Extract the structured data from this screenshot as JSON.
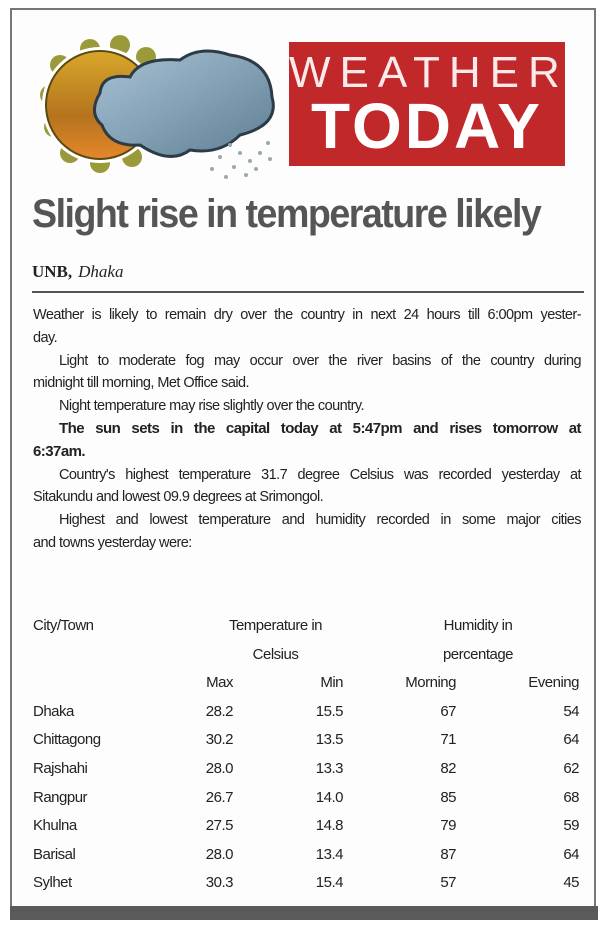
{
  "logo": {
    "line1": "WEATHER",
    "line2": "TODAY",
    "brand_color": "#c0282a",
    "icon": "sun-cloud-rain-icon"
  },
  "headline": "Slight rise in temperature likely",
  "byline": {
    "source": "UNB,",
    "location": "Dhaka"
  },
  "paragraphs": [
    {
      "lines": [
        "Weather is likely to remain dry over the country in next 24 hours till 6:00pm yester-",
        "day."
      ]
    },
    {
      "lines": [
        "Light to moderate fog may occur over the river basins of the country during",
        "midnight till morning, Met Office said."
      ]
    },
    {
      "lines": [
        "Night temperature may rise slightly over the country."
      ]
    },
    {
      "lines": [
        "The sun sets in the capital today at 5:47pm and rises tomorrow at",
        "6:37am."
      ],
      "bold": true
    },
    {
      "lines": [
        "Country's highest temperature 31.7 degree Celsius was recorded yesterday at",
        "Sitakundu and lowest 09.9 degrees at Srimongol."
      ]
    },
    {
      "lines": [
        "Highest and lowest temperature and humidity recorded in some major cities",
        "and towns yesterday were:"
      ]
    }
  ],
  "table": {
    "city_header": "City/Town",
    "temp_header": [
      "Temperature in",
      "Celsius"
    ],
    "humidity_header": [
      "Humidity in",
      "percentage"
    ],
    "subheaders": [
      "Max",
      "Min",
      "Morning",
      "Evening"
    ],
    "rows": [
      [
        "Dhaka",
        "28.2",
        "15.5",
        "67",
        "54"
      ],
      [
        "Chittagong",
        "30.2",
        "13.5",
        "71",
        "64"
      ],
      [
        "Rajshahi",
        "28.0",
        "13.3",
        "82",
        "62"
      ],
      [
        "Rangpur",
        "26.7",
        "14.0",
        "85",
        "68"
      ],
      [
        "Khulna",
        "27.5",
        "14.8",
        "79",
        "59"
      ],
      [
        "Barisal",
        "28.0",
        "13.4",
        "87",
        "64"
      ],
      [
        "Sylhet",
        "30.3",
        "15.4",
        "57",
        "45"
      ]
    ]
  }
}
